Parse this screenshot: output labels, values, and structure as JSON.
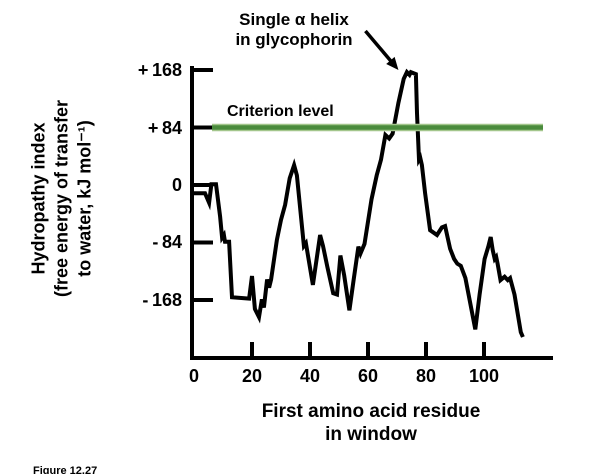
{
  "figure": {
    "caption": "Figure 12.27",
    "annotation": {
      "line1": "Single α helix",
      "line2": "in glycophorin"
    },
    "criterion_label": "Criterion level",
    "y_axis": {
      "title_lines": [
        "Hydropathy index",
        "(free energy of transfer",
        "to water, kJ mol⁻¹)"
      ],
      "ticks": [
        {
          "label": "+ 168",
          "value": 168
        },
        {
          "label": "+ 84",
          "value": 84
        },
        {
          "label": "0",
          "value": 0
        },
        {
          "label": "- 84",
          "value": -84
        },
        {
          "label": "- 168",
          "value": -168
        }
      ]
    },
    "x_axis": {
      "title_lines": [
        "First amino acid residue",
        "in window"
      ],
      "ticks": [
        {
          "label": "0",
          "value": 0
        },
        {
          "label": "20",
          "value": 20
        },
        {
          "label": "40",
          "value": 40
        },
        {
          "label": "60",
          "value": 60
        },
        {
          "label": "80",
          "value": 80
        },
        {
          "label": "100",
          "value": 100
        }
      ]
    },
    "colors": {
      "curve": "#000000",
      "criterion_line": "#4a8b3c",
      "criterion_line_edge": "#a3c68c",
      "text": "#000000"
    }
  },
  "chart_data": {
    "type": "line",
    "title": "",
    "xlabel": "First amino acid residue in window",
    "ylabel": "Hydropathy index (free energy of transfer to water, kJ mol⁻¹)",
    "xlim": [
      0,
      124
    ],
    "ylim": [
      -240,
      190
    ],
    "x_ticks": [
      0,
      20,
      40,
      60,
      80,
      100
    ],
    "y_ticks": [
      168,
      84,
      0,
      -84,
      -168
    ],
    "grid": false,
    "legend": "none",
    "criterion_level": 84,
    "annotation": {
      "text": "Single α helix in glycophorin",
      "arrow_target": {
        "x": 70.5,
        "y": 168
      }
    },
    "series": [
      {
        "name": "glycophorin hydropathy",
        "points": [
          [
            0,
            -12
          ],
          [
            3.8,
            -12
          ],
          [
            5.2,
            -26
          ],
          [
            6,
            1
          ],
          [
            7.6,
            1
          ],
          [
            9,
            -46
          ],
          [
            9.7,
            -77
          ],
          [
            10.3,
            -73
          ],
          [
            10.7,
            -83
          ],
          [
            12.1,
            -83
          ],
          [
            13.1,
            -164
          ],
          [
            19,
            -166
          ],
          [
            20,
            -133
          ],
          [
            21,
            -181
          ],
          [
            22.4,
            -193
          ],
          [
            23.4,
            -167
          ],
          [
            24.1,
            -179
          ],
          [
            25.2,
            -138
          ],
          [
            25.9,
            -150
          ],
          [
            26.6,
            -138
          ],
          [
            28.6,
            -80
          ],
          [
            30,
            -51
          ],
          [
            31.4,
            -29
          ],
          [
            33,
            10
          ],
          [
            34.5,
            29
          ],
          [
            35.5,
            14
          ],
          [
            37.9,
            -89
          ],
          [
            38.6,
            -85
          ],
          [
            41,
            -146
          ],
          [
            43.5,
            -73
          ],
          [
            44.5,
            -89
          ],
          [
            46,
            -120
          ],
          [
            48,
            -158
          ],
          [
            49.3,
            -160
          ],
          [
            50.5,
            -103
          ],
          [
            51.8,
            -132
          ],
          [
            53.6,
            -183
          ],
          [
            55,
            -140
          ],
          [
            56.7,
            -90
          ],
          [
            57.4,
            -100
          ],
          [
            58.8,
            -86
          ],
          [
            61.2,
            -21
          ],
          [
            63,
            14
          ],
          [
            64.5,
            37
          ],
          [
            66,
            73
          ],
          [
            67.3,
            68
          ],
          [
            68.5,
            75
          ],
          [
            70.5,
            120
          ],
          [
            72.3,
            155
          ],
          [
            73.4,
            165
          ],
          [
            74.3,
            161
          ],
          [
            74.8,
            165
          ],
          [
            76.5,
            162
          ],
          [
            76.9,
            105
          ],
          [
            77.6,
            37
          ],
          [
            78,
            40
          ],
          [
            78.6,
            29
          ],
          [
            79.7,
            -12
          ],
          [
            81.4,
            -66
          ],
          [
            83.8,
            -73
          ],
          [
            85.5,
            -62
          ],
          [
            86.6,
            -60
          ],
          [
            88.3,
            -93
          ],
          [
            89.7,
            -108
          ],
          [
            90.8,
            -115
          ],
          [
            92,
            -118
          ],
          [
            93.6,
            -136
          ],
          [
            97,
            -211
          ],
          [
            98.5,
            -160
          ],
          [
            100.2,
            -108
          ],
          [
            101.5,
            -90
          ],
          [
            102.3,
            -76
          ],
          [
            103,
            -95
          ],
          [
            103.7,
            -108
          ],
          [
            104.2,
            -105
          ],
          [
            104.7,
            -115
          ],
          [
            105.7,
            -139
          ],
          [
            107.1,
            -134
          ],
          [
            108.2,
            -139
          ],
          [
            109,
            -136
          ],
          [
            110.5,
            -160
          ],
          [
            112.7,
            -215
          ],
          [
            113.4,
            -222
          ]
        ]
      }
    ]
  }
}
